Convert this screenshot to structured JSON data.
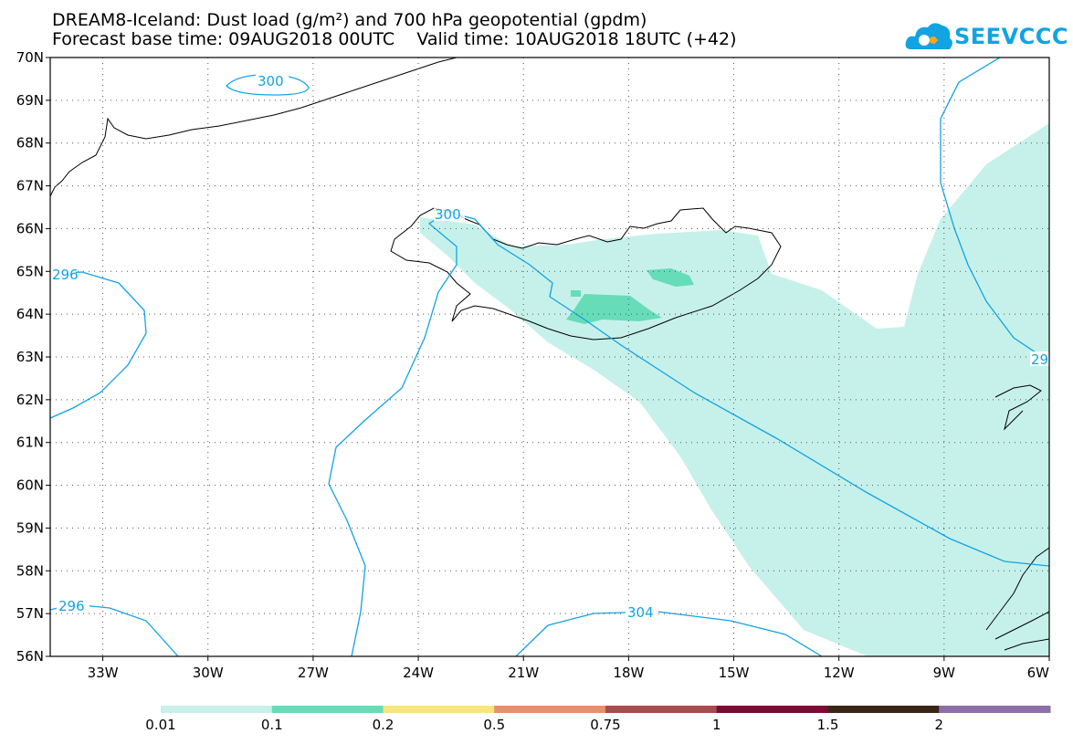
{
  "title": {
    "line1": "DREAM8-Iceland: Dust load (g/m²) and 700 hPa geopotential (gpdm)",
    "line2": "Forecast base time: 09AUG2018 00UTC    Valid time: 10AUG2018 18UTC (+42)"
  },
  "logo": {
    "text": "SEEVCCC",
    "color": "#12a3e3"
  },
  "map": {
    "lat_range": [
      56,
      70
    ],
    "lon_range": [
      -34.5,
      -6
    ],
    "lat_labels": [
      "70N",
      "69N",
      "68N",
      "67N",
      "66N",
      "65N",
      "64N",
      "63N",
      "62N",
      "61N",
      "60N",
      "59N",
      "58N",
      "57N",
      "56N"
    ],
    "lon_labels": [
      "33W",
      "30W",
      "27W",
      "24W",
      "21W",
      "18W",
      "15W",
      "12W",
      "9W",
      "6W"
    ],
    "grid": "dotted",
    "contour_color": "#12a3e3",
    "contour_labels": [
      "300",
      "300",
      "296",
      "296",
      "29",
      "304"
    ]
  },
  "colorbar": {
    "labels": [
      "0.01",
      "0.1",
      "0.2",
      "0.5",
      "0.75",
      "1",
      "1.5",
      "2"
    ],
    "colors": [
      "#c6f1ea",
      "#66dcb8",
      "#f8e67c",
      "#e98e6e",
      "#a84c4e",
      "#7d0a33",
      "#3b2616",
      "#8d6ea8"
    ]
  }
}
